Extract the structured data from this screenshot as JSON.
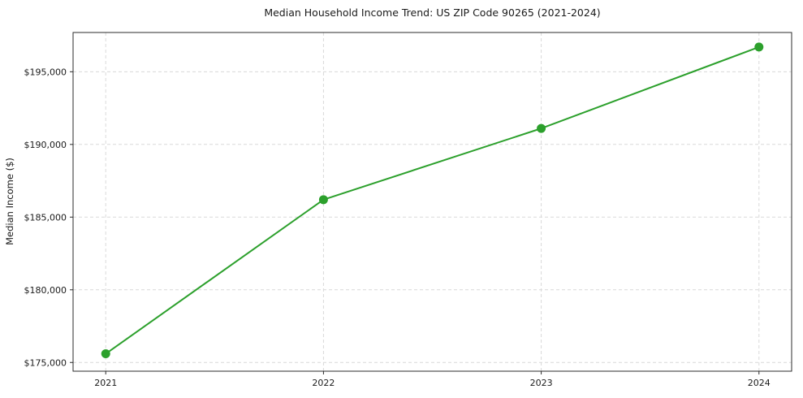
{
  "chart_data": {
    "type": "line",
    "title": "Median Household Income Trend: US ZIP Code 90265 (2021-2024)",
    "xlabel": "",
    "ylabel": "Median Income ($)",
    "x": [
      2021,
      2022,
      2023,
      2024
    ],
    "xtick_labels": [
      "2021",
      "2022",
      "2023",
      "2024"
    ],
    "series": [
      {
        "name": "Median household income",
        "values": [
          175600,
          186200,
          191100,
          196700
        ]
      }
    ],
    "ytick_values": [
      175000,
      180000,
      185000,
      190000,
      195000
    ],
    "ytick_labels": [
      "$175,000",
      "$180,000",
      "$185,000",
      "$190,000",
      "$195,000"
    ],
    "xlim": [
      2020.85,
      2024.15
    ],
    "ylim": [
      174400,
      197700
    ],
    "grid": true,
    "grid_style": "dashed",
    "grid_color": "#d9d9d9",
    "line_color": "#2ca02c",
    "marker": "circle",
    "spine_color": "#2b2b2b",
    "legend": "none"
  }
}
